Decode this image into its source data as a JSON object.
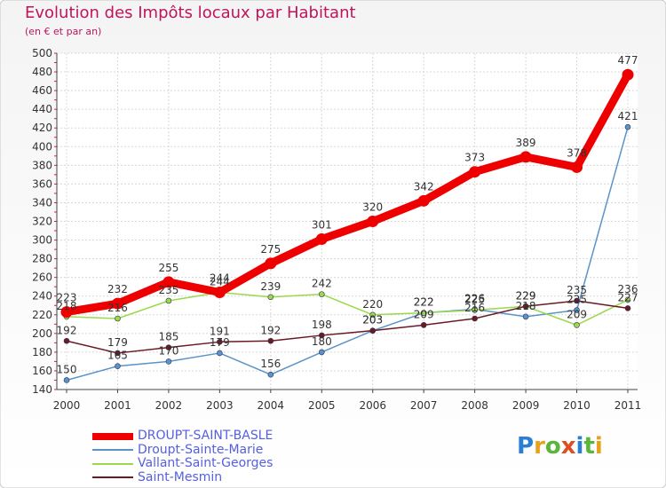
{
  "title": "Evolution des Impôts locaux par Habitant",
  "subtitle": "(en € et par an)",
  "logo": {
    "text": "Proxiti"
  },
  "chart_data": {
    "type": "line",
    "title": "Evolution des Impôts locaux par Habitant",
    "subtitle": "(en € et par an)",
    "xlabel": "",
    "ylabel": "",
    "x": [
      "2000",
      "2001",
      "2002",
      "2003",
      "2004",
      "2005",
      "2006",
      "2007",
      "2008",
      "2009",
      "2010",
      "2011"
    ],
    "ylim": [
      140,
      500
    ],
    "yticks": [
      140,
      160,
      180,
      200,
      220,
      240,
      260,
      280,
      300,
      320,
      340,
      360,
      380,
      400,
      420,
      440,
      460,
      480,
      500
    ],
    "grid": true,
    "legend_position": "bottom-left",
    "series": [
      {
        "name": "DROUPT-SAINT-BASLE",
        "color": "#ee0000",
        "emphasis": true,
        "values": [
          223,
          232,
          255,
          244,
          275,
          301,
          320,
          342,
          373,
          389,
          378,
          477
        ]
      },
      {
        "name": "Droupt-Sainte-Marie",
        "color": "#5a93c9",
        "values": [
          150,
          165,
          170,
          179,
          156,
          180,
          203,
          222,
          226,
          218,
          225,
          421
        ]
      },
      {
        "name": "Vallant-Saint-Georges",
        "color": "#9ad94a",
        "values": [
          218,
          216,
          235,
          244,
          239,
          242,
          220,
          222,
          225,
          229,
          209,
          236
        ]
      },
      {
        "name": "Saint-Mesmin",
        "color": "#6b1a24",
        "values": [
          192,
          179,
          185,
          191,
          192,
          198,
          203,
          209,
          216,
          229,
          235,
          227
        ]
      }
    ]
  }
}
